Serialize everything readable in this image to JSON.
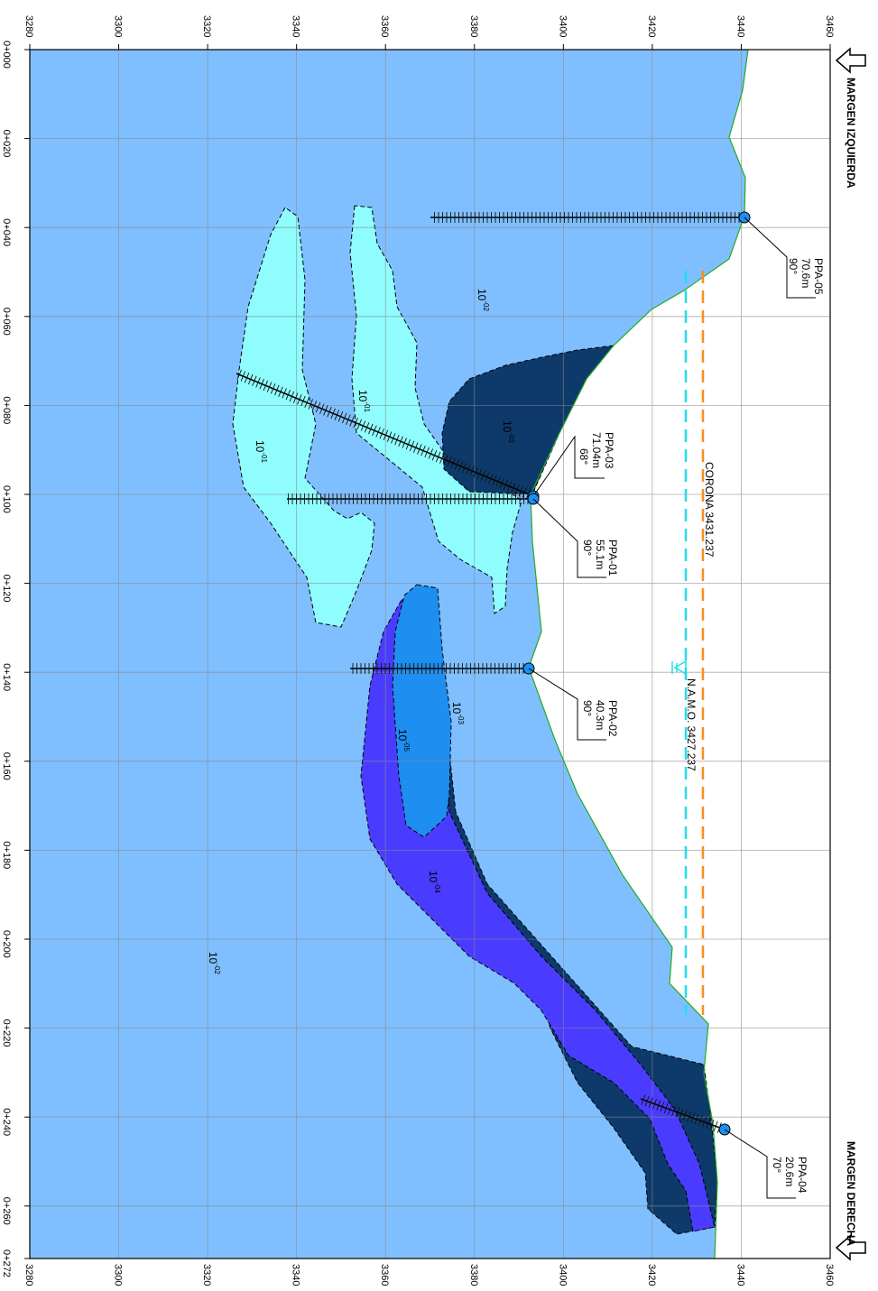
{
  "elevation_ticks": [
    "3280",
    "3300",
    "3320",
    "3340",
    "3360",
    "3380",
    "3400",
    "3420",
    "3440",
    "3460"
  ],
  "chainage_ticks": [
    "0+000",
    "0+020",
    "0+040",
    "0+060",
    "0+080",
    "0+100",
    "0+120",
    "0+140",
    "0+160",
    "0+180",
    "0+200",
    "0+220",
    "0+240",
    "0+260",
    "0+272"
  ],
  "margins": {
    "left": "MARGEN IZQUIERDA",
    "right": "MARGEN DERECHA"
  },
  "levels": {
    "corona": "CORONA 3431.237",
    "namo": "N.A.M.O. 3427.237"
  },
  "permeability_labels": [
    {
      "base": "10",
      "exp": "-02",
      "zone": "background-upper"
    },
    {
      "base": "10",
      "exp": "-02",
      "zone": "background-lower"
    },
    {
      "base": "10",
      "exp": "-01",
      "zone": "light-left"
    },
    {
      "base": "10",
      "exp": "-01",
      "zone": "light-right"
    },
    {
      "base": "10",
      "exp": "-03",
      "zone": "dark-upper"
    },
    {
      "base": "10",
      "exp": "-03",
      "zone": "dark-lower"
    },
    {
      "base": "10",
      "exp": "-04",
      "zone": "violet"
    },
    {
      "base": "10",
      "exp": "-05",
      "zone": "medium-blue"
    }
  ],
  "drillholes": [
    {
      "id": "PPA-05",
      "length": "70.6m",
      "angle": "90°"
    },
    {
      "id": "PPA-03",
      "length": "71.04m",
      "angle": "68°"
    },
    {
      "id": "PPA-01",
      "length": "55.1m",
      "angle": "90°"
    },
    {
      "id": "PPA-02",
      "length": "40.3m",
      "angle": "90°"
    },
    {
      "id": "PPA-04",
      "length": "20.6m",
      "angle": "70°"
    }
  ],
  "colors": {
    "rock_1e-02": "#80bfff",
    "zone_1e-01": "#8ffdfd",
    "zone_1e-03": "#0d3a6b",
    "zone_1e-04": "#4a3cff",
    "zone_1e-05": "#1e8ef0",
    "corona_line": "#ff8c1a",
    "namo_line": "#22ddee",
    "terrain_line": "#22aa22"
  }
}
